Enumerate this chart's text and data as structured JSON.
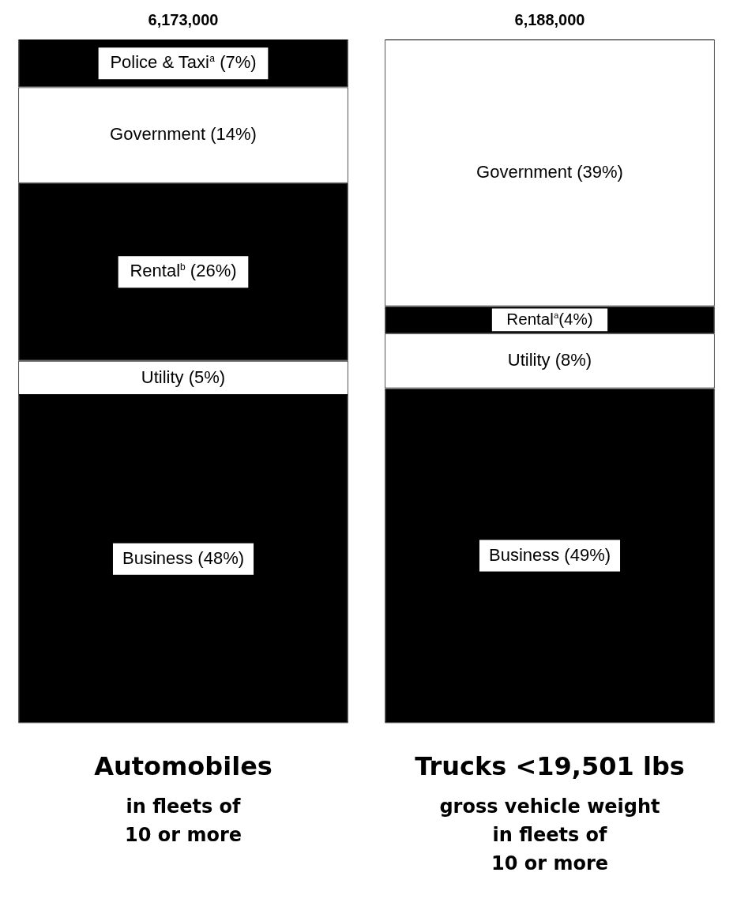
{
  "chart_data": {
    "type": "bar",
    "stacked": true,
    "categories": [
      "Automobiles",
      "Trucks <19,501 lbs"
    ],
    "ylim": [
      0,
      100
    ],
    "tick_labels": "x",
    "legend": false,
    "grid": false,
    "series": [
      {
        "color": "#000000",
        "values": [
          48,
          49
        ],
        "value_labels": [
          "Business (48%)",
          "Business (49%)"
        ]
      },
      {
        "color": "#ffffff",
        "values": [
          5,
          8
        ],
        "value_labels": [
          "Utility (5%)",
          "Utility (8%)"
        ]
      },
      {
        "color": "#000000",
        "values": [
          26,
          4
        ],
        "value_labels": [
          "Rental$^{b}$ (26%)",
          "Rental$^{a}$(4%)"
        ]
      },
      {
        "color": "#ffffff",
        "values": [
          14,
          39
        ],
        "value_labels": [
          "Government (14%)",
          "Government (39%)"
        ]
      },
      {
        "color": "#000000",
        "values": [
          7,
          null
        ],
        "value_labels": [
          "Police & Taxi$^{a}$ (7%)",
          null
        ]
      }
    ],
    "annotations": [
      "6,173,000",
      "6,188,000",
      "in fleets of\n10 or more",
      "gross vehicle weight\nin fleets of\n10 or more"
    ]
  }
}
